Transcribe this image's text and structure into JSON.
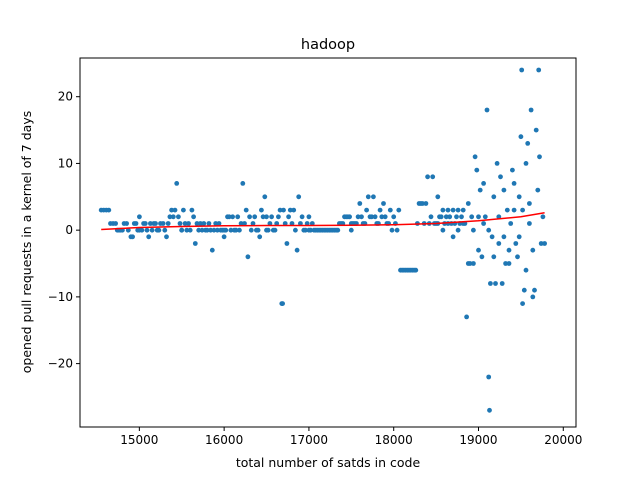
{
  "chart_data": {
    "type": "scatter",
    "title": "hadoop",
    "xlabel": "total number of satds in code",
    "ylabel": "opened pull requests in a kernel of 7 days",
    "xlim": [
      14300,
      20150
    ],
    "ylim": [
      -29.5,
      25.8
    ],
    "xticks": [
      15000,
      16000,
      17000,
      18000,
      19000,
      20000
    ],
    "yticks": [
      -20,
      -10,
      0,
      10,
      20
    ],
    "grid": false,
    "colors": {
      "points": "#1f77b4",
      "trend": "#ff0000"
    },
    "series": [
      {
        "kind": "scatter",
        "points": [
          [
            14550,
            3
          ],
          [
            14580,
            3
          ],
          [
            14610,
            3
          ],
          [
            14640,
            3
          ],
          [
            14660,
            1
          ],
          [
            14690,
            1
          ],
          [
            14720,
            1
          ],
          [
            14740,
            0
          ],
          [
            14760,
            0
          ],
          [
            14780,
            0
          ],
          [
            14800,
            0
          ],
          [
            14820,
            1
          ],
          [
            14850,
            1
          ],
          [
            14870,
            0
          ],
          [
            14900,
            -1
          ],
          [
            14920,
            -1
          ],
          [
            14940,
            1
          ],
          [
            14960,
            1
          ],
          [
            14980,
            0
          ],
          [
            15000,
            2
          ],
          [
            15030,
            0
          ],
          [
            15050,
            1
          ],
          [
            15070,
            1
          ],
          [
            15090,
            0
          ],
          [
            15110,
            -1
          ],
          [
            15130,
            1
          ],
          [
            15150,
            0
          ],
          [
            15170,
            1
          ],
          [
            15190,
            1
          ],
          [
            15210,
            0
          ],
          [
            15230,
            0
          ],
          [
            15250,
            1
          ],
          [
            15280,
            1
          ],
          [
            15300,
            0
          ],
          [
            15320,
            -1
          ],
          [
            15340,
            1
          ],
          [
            15360,
            2
          ],
          [
            15380,
            3
          ],
          [
            15400,
            2
          ],
          [
            15420,
            3
          ],
          [
            15440,
            7
          ],
          [
            15460,
            2
          ],
          [
            15480,
            1
          ],
          [
            15500,
            0
          ],
          [
            15520,
            3
          ],
          [
            15540,
            1
          ],
          [
            15560,
            0
          ],
          [
            15580,
            1
          ],
          [
            15600,
            0
          ],
          [
            15620,
            3
          ],
          [
            15640,
            2
          ],
          [
            15660,
            -2
          ],
          [
            15680,
            1
          ],
          [
            15700,
            0
          ],
          [
            15720,
            1
          ],
          [
            15740,
            0
          ],
          [
            15760,
            1
          ],
          [
            15780,
            0
          ],
          [
            15800,
            0
          ],
          [
            15820,
            1
          ],
          [
            15840,
            0
          ],
          [
            15860,
            -3
          ],
          [
            15880,
            0
          ],
          [
            15900,
            1
          ],
          [
            15920,
            0
          ],
          [
            15940,
            1
          ],
          [
            15960,
            0
          ],
          [
            15980,
            0
          ],
          [
            16000,
            -1
          ],
          [
            16020,
            0
          ],
          [
            16040,
            2
          ],
          [
            16060,
            2
          ],
          [
            16080,
            0
          ],
          [
            16100,
            2
          ],
          [
            16120,
            0
          ],
          [
            16140,
            0
          ],
          [
            16160,
            2
          ],
          [
            16180,
            0
          ],
          [
            16200,
            1
          ],
          [
            16220,
            7
          ],
          [
            16240,
            1
          ],
          [
            16260,
            3
          ],
          [
            16280,
            -4
          ],
          [
            16300,
            2
          ],
          [
            16320,
            0
          ],
          [
            16340,
            1
          ],
          [
            16360,
            2
          ],
          [
            16380,
            0
          ],
          [
            16400,
            0
          ],
          [
            16420,
            -1
          ],
          [
            16440,
            3
          ],
          [
            16460,
            2
          ],
          [
            16480,
            5
          ],
          [
            16500,
            2
          ],
          [
            16520,
            0
          ],
          [
            16540,
            1
          ],
          [
            16560,
            2
          ],
          [
            16580,
            0
          ],
          [
            16600,
            0
          ],
          [
            16620,
            1
          ],
          [
            16640,
            2
          ],
          [
            16660,
            3
          ],
          [
            16680,
            -11
          ],
          [
            16690,
            -11
          ],
          [
            16700,
            3
          ],
          [
            16720,
            1
          ],
          [
            16740,
            -2
          ],
          [
            16760,
            2
          ],
          [
            16780,
            3
          ],
          [
            16800,
            1
          ],
          [
            16820,
            3
          ],
          [
            16840,
            0
          ],
          [
            16860,
            -3
          ],
          [
            16880,
            5
          ],
          [
            16900,
            1
          ],
          [
            16920,
            2
          ],
          [
            16940,
            0
          ],
          [
            16960,
            0
          ],
          [
            16980,
            1
          ],
          [
            17000,
            2
          ],
          [
            17020,
            0
          ],
          [
            17040,
            1
          ],
          [
            17060,
            0
          ],
          [
            17080,
            0
          ],
          [
            17100,
            0
          ],
          [
            17120,
            0
          ],
          [
            17140,
            0
          ],
          [
            17160,
            0
          ],
          [
            17180,
            0
          ],
          [
            17200,
            0
          ],
          [
            17220,
            0
          ],
          [
            17240,
            0
          ],
          [
            17260,
            0
          ],
          [
            17280,
            0
          ],
          [
            17300,
            0
          ],
          [
            17320,
            0
          ],
          [
            17340,
            0
          ],
          [
            17360,
            1
          ],
          [
            17380,
            1
          ],
          [
            17400,
            1
          ],
          [
            17420,
            2
          ],
          [
            17440,
            2
          ],
          [
            17460,
            2
          ],
          [
            17480,
            2
          ],
          [
            17500,
            1
          ],
          [
            17520,
            1
          ],
          [
            17540,
            1
          ],
          [
            17560,
            1
          ],
          [
            17580,
            2
          ],
          [
            17600,
            4
          ],
          [
            17620,
            2
          ],
          [
            17640,
            1
          ],
          [
            17660,
            1
          ],
          [
            17680,
            3
          ],
          [
            17700,
            5
          ],
          [
            17720,
            2
          ],
          [
            17740,
            2
          ],
          [
            17760,
            5
          ],
          [
            17780,
            2
          ],
          [
            17800,
            1
          ],
          [
            17820,
            1
          ],
          [
            17840,
            3
          ],
          [
            17860,
            2
          ],
          [
            17880,
            4
          ],
          [
            17900,
            2
          ],
          [
            17920,
            1
          ],
          [
            17940,
            1
          ],
          [
            17960,
            3
          ],
          [
            17980,
            0
          ],
          [
            18000,
            2
          ],
          [
            18020,
            1
          ],
          [
            18040,
            0
          ],
          [
            18060,
            3
          ],
          [
            18080,
            -6
          ],
          [
            18100,
            -6
          ],
          [
            18120,
            -6
          ],
          [
            18140,
            -6
          ],
          [
            18160,
            -6
          ],
          [
            18180,
            -6
          ],
          [
            18200,
            -6
          ],
          [
            18220,
            -6
          ],
          [
            18240,
            -6
          ],
          [
            18260,
            -6
          ],
          [
            18280,
            1
          ],
          [
            18300,
            4
          ],
          [
            18320,
            4
          ],
          [
            18340,
            4
          ],
          [
            18360,
            1
          ],
          [
            18380,
            4
          ],
          [
            18400,
            8
          ],
          [
            18420,
            1
          ],
          [
            18440,
            2
          ],
          [
            18460,
            8
          ],
          [
            18480,
            1
          ],
          [
            18500,
            1
          ],
          [
            18520,
            5
          ],
          [
            18540,
            2
          ],
          [
            18560,
            2
          ],
          [
            18580,
            3
          ],
          [
            18600,
            1
          ],
          [
            18620,
            2
          ],
          [
            18640,
            3
          ],
          [
            18660,
            2
          ],
          [
            18680,
            1
          ],
          [
            18700,
            3
          ],
          [
            18720,
            1
          ],
          [
            18740,
            2
          ],
          [
            18760,
            3
          ],
          [
            18780,
            1
          ],
          [
            18800,
            2
          ],
          [
            18820,
            3
          ],
          [
            18840,
            1
          ],
          [
            18860,
            -13
          ],
          [
            18880,
            -5
          ],
          [
            18900,
            -5
          ],
          [
            18920,
            2
          ],
          [
            18940,
            -5
          ],
          [
            18960,
            11
          ],
          [
            18980,
            9
          ],
          [
            19000,
            2
          ],
          [
            19020,
            6
          ],
          [
            19040,
            -4
          ],
          [
            19060,
            7
          ],
          [
            19080,
            2
          ],
          [
            19100,
            18
          ],
          [
            19120,
            -22
          ],
          [
            19130,
            -27
          ],
          [
            19140,
            -8
          ],
          [
            19160,
            -1
          ],
          [
            19180,
            5
          ],
          [
            19200,
            -8
          ],
          [
            19220,
            10
          ],
          [
            19240,
            2
          ],
          [
            19260,
            8
          ],
          [
            19280,
            -8
          ],
          [
            19300,
            6
          ],
          [
            19320,
            -5
          ],
          [
            19340,
            3
          ],
          [
            19360,
            -3
          ],
          [
            19380,
            1
          ],
          [
            19400,
            9
          ],
          [
            19420,
            3
          ],
          [
            19440,
            -2
          ],
          [
            19460,
            -4
          ],
          [
            19480,
            5
          ],
          [
            19500,
            14
          ],
          [
            19510,
            24
          ],
          [
            19520,
            -11
          ],
          [
            19540,
            -9
          ],
          [
            19560,
            10
          ],
          [
            19580,
            13
          ],
          [
            19600,
            1
          ],
          [
            19620,
            18
          ],
          [
            19640,
            -10
          ],
          [
            19660,
            -9
          ],
          [
            19680,
            15
          ],
          [
            19700,
            6
          ],
          [
            19710,
            24
          ],
          [
            19720,
            11
          ],
          [
            19740,
            -2
          ],
          [
            19760,
            2
          ],
          [
            19780,
            -2
          ],
          [
            19640,
            -3
          ],
          [
            19600,
            4
          ],
          [
            19560,
            -6
          ],
          [
            19520,
            3
          ],
          [
            19480,
            -1
          ],
          [
            19420,
            7
          ],
          [
            19360,
            -5
          ],
          [
            19300,
            -1
          ],
          [
            19240,
            -2
          ],
          [
            19180,
            -4
          ],
          [
            19120,
            0
          ],
          [
            19060,
            1
          ],
          [
            19000,
            -3
          ],
          [
            18940,
            0
          ],
          [
            18880,
            4
          ],
          [
            18820,
            1
          ],
          [
            18760,
            0
          ],
          [
            18700,
            -1
          ],
          [
            18640,
            1
          ],
          [
            18580,
            0
          ],
          [
            18520,
            1
          ],
          [
            17500,
            0
          ],
          [
            17000,
            0
          ],
          [
            16500,
            0
          ],
          [
            16000,
            0
          ],
          [
            15500,
            0
          ],
          [
            15000,
            0
          ]
        ]
      },
      {
        "kind": "trend",
        "points": [
          [
            14550,
            0.1
          ],
          [
            15000,
            0.4
          ],
          [
            15500,
            0.55
          ],
          [
            16000,
            0.65
          ],
          [
            16500,
            0.7
          ],
          [
            17000,
            0.7
          ],
          [
            17500,
            0.75
          ],
          [
            18000,
            0.8
          ],
          [
            18500,
            1.0
          ],
          [
            19000,
            1.4
          ],
          [
            19500,
            2.0
          ],
          [
            19780,
            2.6
          ]
        ]
      }
    ]
  }
}
